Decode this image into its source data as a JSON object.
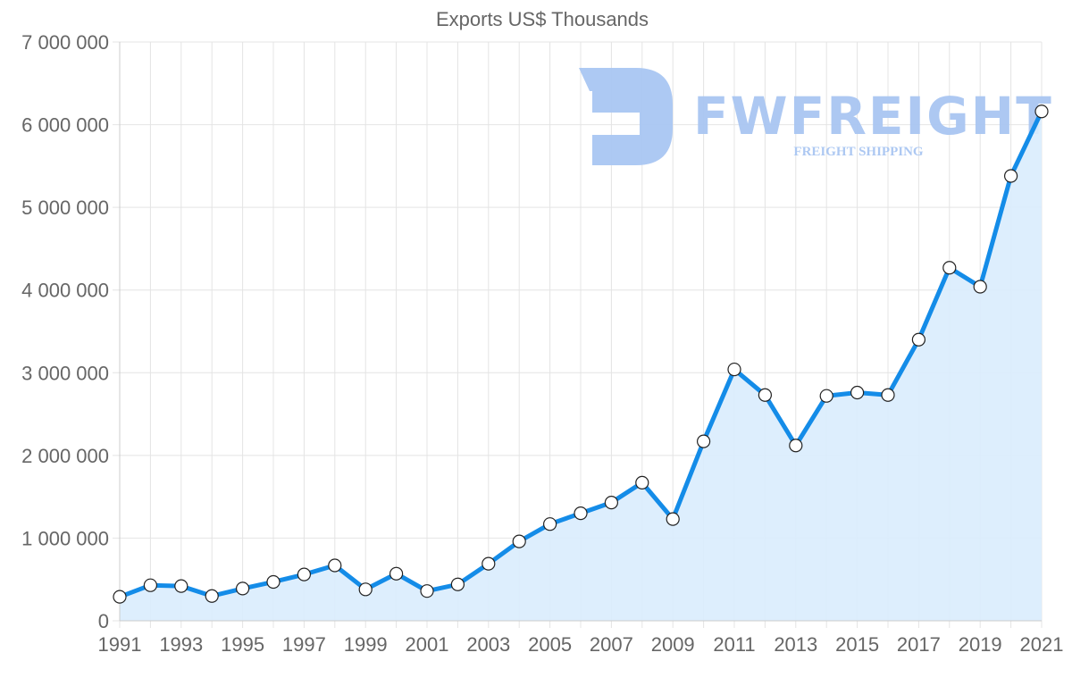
{
  "chart_data": {
    "type": "line",
    "title": "Exports US$ Thousands",
    "xlabel": "",
    "ylabel": "",
    "x": [
      1991,
      1992,
      1993,
      1994,
      1995,
      1996,
      1997,
      1998,
      1999,
      2000,
      2001,
      2002,
      2003,
      2004,
      2005,
      2006,
      2007,
      2008,
      2009,
      2010,
      2011,
      2012,
      2013,
      2014,
      2015,
      2016,
      2017,
      2018,
      2019,
      2020,
      2021
    ],
    "series": [
      {
        "name": "Exports US$ Thousands",
        "values": [
          290000,
          430000,
          420000,
          300000,
          390000,
          470000,
          560000,
          670000,
          380000,
          570000,
          360000,
          440000,
          690000,
          960000,
          1170000,
          1300000,
          1430000,
          1670000,
          1230000,
          2170000,
          3040000,
          2730000,
          2120000,
          2720000,
          2760000,
          2730000,
          3400000,
          4270000,
          4040000,
          5380000,
          6160000
        ],
        "line_color": "#148ce8",
        "fill_color": "#d9ecfd",
        "marker": "circle-white"
      }
    ],
    "ylim": [
      0,
      7000000
    ],
    "yticks": [
      0,
      1000000,
      2000000,
      3000000,
      4000000,
      5000000,
      6000000,
      7000000
    ],
    "ytick_labels": [
      "0",
      "1 000 000",
      "2 000 000",
      "3 000 000",
      "4 000 000",
      "5 000 000",
      "6 000 000",
      "7 000 000"
    ],
    "xtick_labels": [
      "1991",
      "1993",
      "1995",
      "1997",
      "1999",
      "2001",
      "2003",
      "2005",
      "2007",
      "2009",
      "2011",
      "2013",
      "2015",
      "2017",
      "2019",
      "2021"
    ],
    "grid": true,
    "legend": "none"
  },
  "watermark": {
    "brand": "FWFREIGHT",
    "tagline": "FREIGHT SHIPPING",
    "color": "#a9c6f2"
  }
}
